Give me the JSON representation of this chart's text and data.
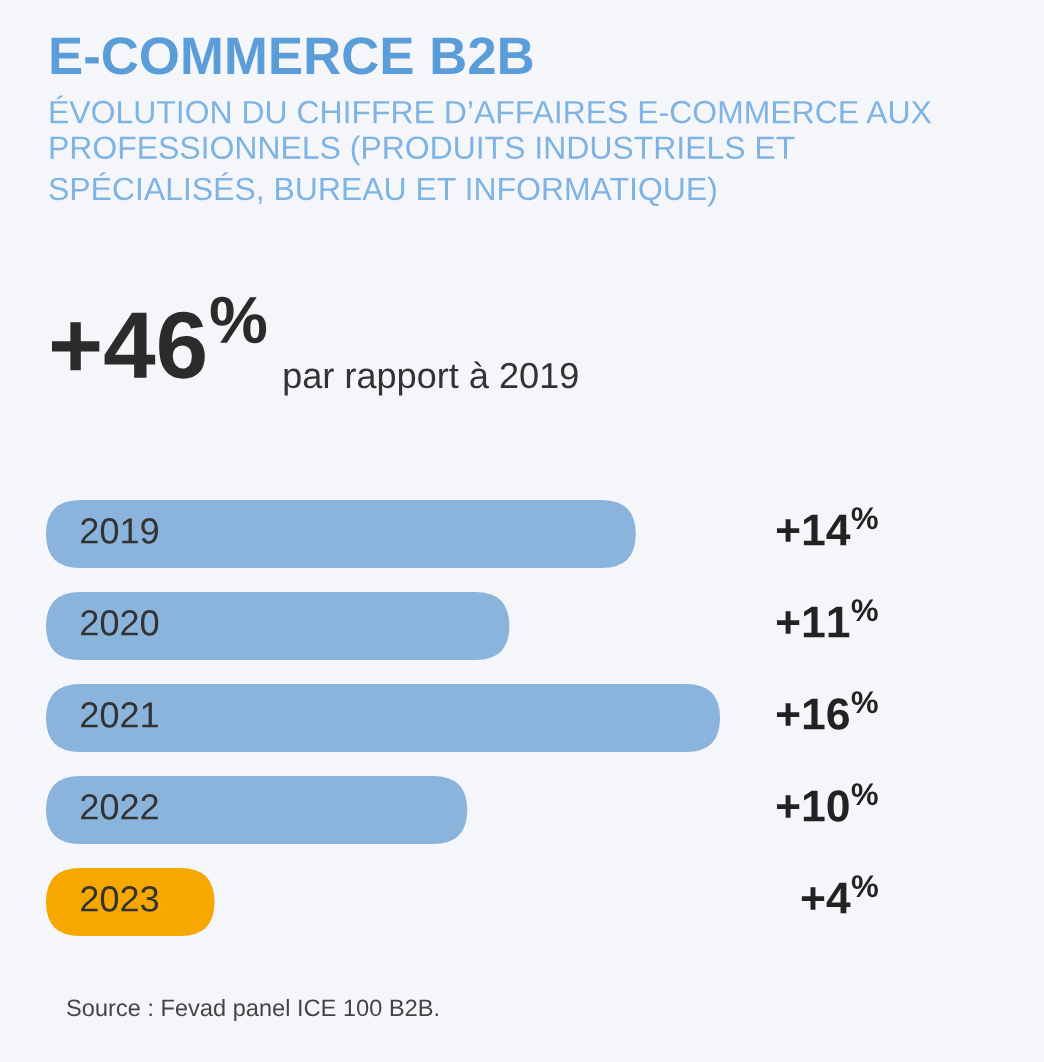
{
  "chart_data": {
    "type": "bar",
    "orientation": "horizontal",
    "title": "E-COMMERCE B2B",
    "subtitle": "ÉVOLUTION DU CHIFFRE D’AFFAIRES E-COMMERCE AUX PROFESSIONNELS (PRODUITS INDUSTRIELS ET SPÉCIALISÉS, BUREAU ET INFORMATIQUE)",
    "categories": [
      "2019",
      "2020",
      "2021",
      "2022",
      "2023"
    ],
    "values": [
      14,
      11,
      16,
      10,
      4
    ],
    "colors": [
      "#8ab4dc",
      "#8ab4dc",
      "#8ab4dc",
      "#8ab4dc",
      "#f7a800"
    ],
    "value_labels": [
      "+14$^{%}$",
      "+11$^{%}$",
      "+16$^{%}$",
      "+10$^{%}$",
      "+4$^{%}$"
    ],
    "annotations": [
      "+46$^{%}$",
      "par rapport à 2019",
      "Source : Fevad panel ICE 100 B2B."
    ]
  }
}
